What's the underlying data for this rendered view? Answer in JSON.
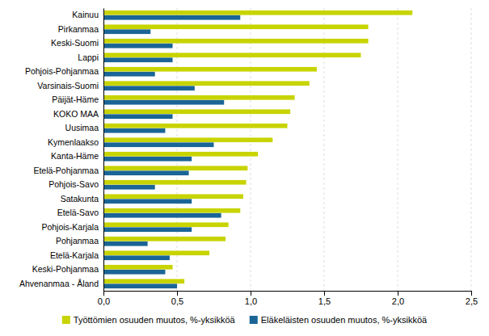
{
  "chart_data": {
    "type": "bar",
    "orientation": "horizontal",
    "categories": [
      "Kainuu",
      "Pirkanmaa",
      "Keski-Suomi",
      "Lappi",
      "Pohjois-Pohjanmaa",
      "Varsinais-Suomi",
      "Päijät-Häme",
      "KOKO MAA",
      "Uusimaa",
      "Kymenlaakso",
      "Kanta-Häme",
      "Etelä-Pohjanmaa",
      "Pohjois-Savo",
      "Satakunta",
      "Etelä-Savo",
      "Pohjois-Karjala",
      "Pohjanmaa",
      "Etelä-Karjala",
      "Keski-Pohjanmaa",
      "Ahvenanmaa - Åland"
    ],
    "series": [
      {
        "name": "Työttömien osuuden muutos, %-yksikköä",
        "color": "#c8d400",
        "values": [
          2.1,
          1.8,
          1.8,
          1.75,
          1.45,
          1.4,
          1.3,
          1.27,
          1.25,
          1.15,
          1.05,
          0.98,
          0.97,
          0.95,
          0.93,
          0.85,
          0.83,
          0.72,
          0.47,
          0.55
        ]
      },
      {
        "name": "Eläkeläisten osuuden muutos, %-yksikköä",
        "color": "#1a6496",
        "values": [
          0.93,
          0.32,
          0.47,
          0.47,
          0.35,
          0.62,
          0.82,
          0.47,
          0.42,
          0.75,
          0.6,
          0.58,
          0.35,
          0.6,
          0.8,
          0.6,
          0.3,
          0.45,
          0.42,
          0.5
        ]
      }
    ],
    "xlim": [
      0,
      2.5
    ],
    "xticks": [
      {
        "value": 0.0,
        "label": "0,0"
      },
      {
        "value": 0.5,
        "label": "0,5"
      },
      {
        "value": 1.0,
        "label": "1,0"
      },
      {
        "value": 1.5,
        "label": "1,5"
      },
      {
        "value": 2.0,
        "label": "2,0"
      },
      {
        "value": 2.5,
        "label": "2,5"
      }
    ],
    "grid": true,
    "legend": "bottom"
  }
}
